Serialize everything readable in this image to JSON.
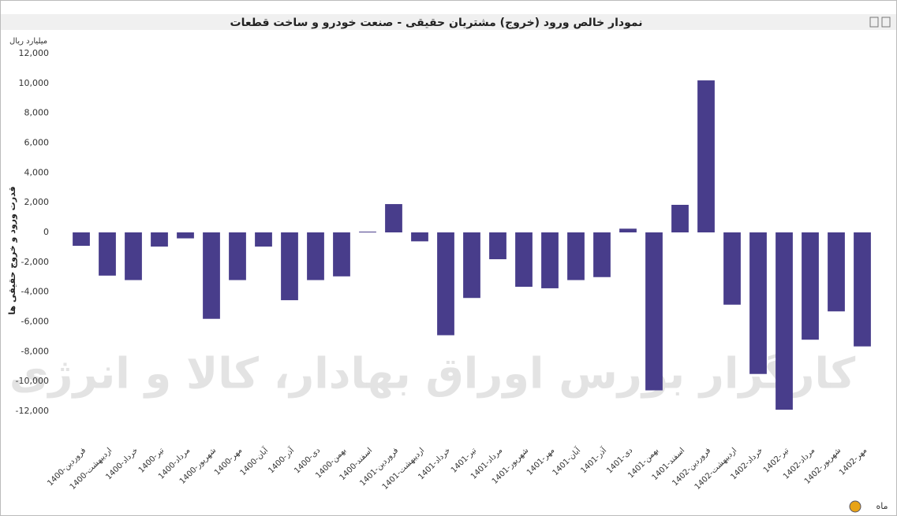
{
  "chart_data": {
    "type": "bar",
    "title": "نمودار خالص ورود (خروج) مشتریان حقیقی - صنعت خودرو و ساخت قطعات",
    "unit_label": "میلیارد ریال",
    "y_label": "قدرت ورود و خروج حقیقی ها",
    "x_label": "ماه",
    "watermark": "کارگزار بورس اوراق بهادار، کالا و انرژی",
    "categories": [
      "1400-فروردین",
      "1400-اردیبهشت",
      "1400-خرداد",
      "1400-تیر",
      "1400-مرداد",
      "1400-شهریور",
      "1400-مهر",
      "1400-آبان",
      "1400-آذر",
      "1400-دی",
      "1400-بهمن",
      "1400-اسفند",
      "1401-فروردین",
      "1401-اردیبهشت",
      "1401-خرداد",
      "1401-تیر",
      "1401-مرداد",
      "1401-شهریور",
      "1401-مهر",
      "1401-آبان",
      "1401-آذر",
      "1401-دی",
      "1401-بهمن",
      "1401-اسفند",
      "1402-فروردین",
      "1402-اردیبهشت",
      "1402-خرداد",
      "1402-تیر",
      "1402-مرداد",
      "1402-شهریور",
      "1402-مهر"
    ],
    "values": [
      -900,
      -2900,
      -3200,
      -950,
      -400,
      -5800,
      -3200,
      -950,
      -4550,
      -3200,
      -2950,
      50,
      1900,
      -600,
      -6900,
      -4400,
      -1800,
      -3650,
      -3750,
      -3200,
      -3000,
      250,
      -10600,
      1850,
      10200,
      -4850,
      -9500,
      -11900,
      -7200,
      -5300,
      -7650
    ],
    "color": "#483d8b",
    "ylim": [
      -12000,
      12000
    ],
    "yticks": [
      {
        "value": 12000,
        "label": "12,000"
      },
      {
        "value": 10000,
        "label": "10,000"
      },
      {
        "value": 8000,
        "label": "8,000"
      },
      {
        "value": 6000,
        "label": "6,000"
      },
      {
        "value": 4000,
        "label": "4,000"
      },
      {
        "value": 2000,
        "label": "2,000"
      },
      0,
      {
        "value": -2000,
        "label": "-2,000"
      },
      {
        "value": -4000,
        "label": "-4,000"
      },
      {
        "value": -6000,
        "label": "-6,000"
      },
      {
        "value": -8000,
        "label": "-8,000"
      },
      {
        "value": -10000,
        "label": "-10,000"
      },
      {
        "value": -12000,
        "label": "-12,000"
      }
    ],
    "grid": false
  }
}
